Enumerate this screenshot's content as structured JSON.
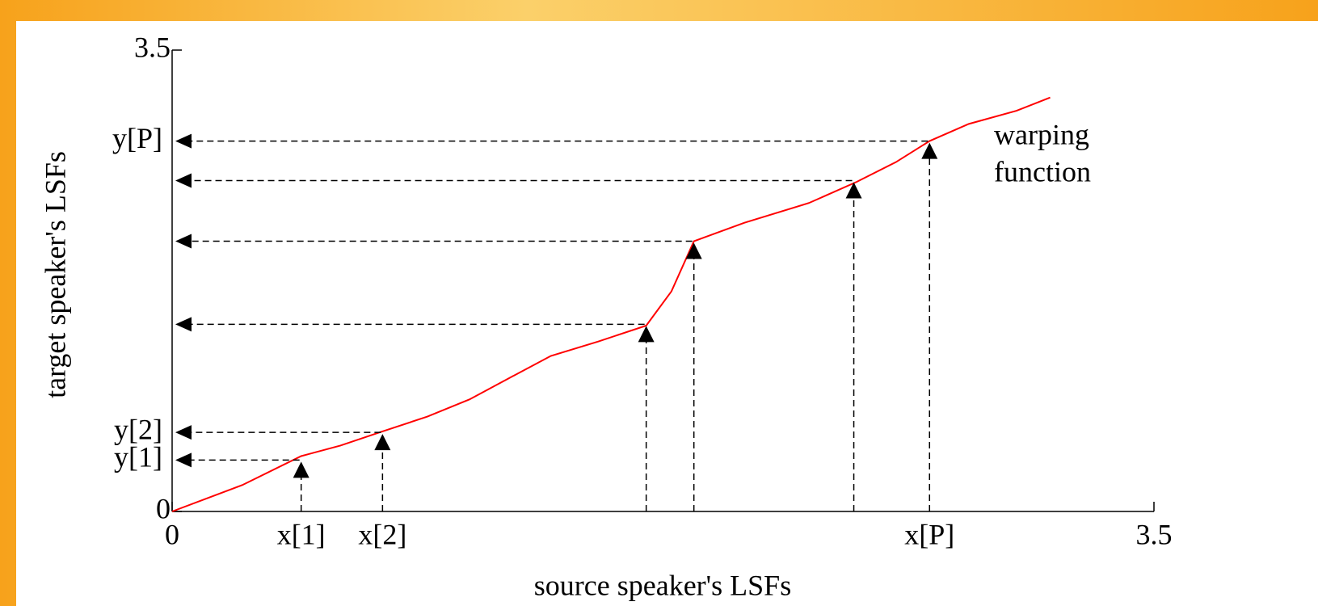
{
  "chart_data": {
    "type": "line",
    "x_label": "source speaker's LSFs",
    "y_label": "target speaker's LSFs",
    "annotation": [
      "warping",
      "function"
    ],
    "color": "#ff0000",
    "x": [
      0,
      0.25,
      0.46,
      0.6,
      0.74,
      0.91,
      1.06,
      1.2,
      1.35,
      1.52,
      1.69,
      1.78,
      1.86,
      2.04,
      2.27,
      2.44,
      2.58,
      2.7,
      2.84,
      3.01,
      3.13
    ],
    "y": [
      0,
      0.2,
      0.42,
      0.5,
      0.6,
      0.72,
      0.85,
      1.01,
      1.18,
      1.29,
      1.41,
      1.67,
      2.05,
      2.19,
      2.34,
      2.5,
      2.65,
      2.81,
      2.94,
      3.04,
      3.14
    ],
    "markers": [
      {
        "x": 0.46,
        "y": 0.39,
        "x_label": "x[1]",
        "y_label": "y[1]"
      },
      {
        "x": 0.75,
        "y": 0.6,
        "x_label": "x[2]",
        "y_label": "y[2]"
      },
      {
        "x": 1.69,
        "y": 1.42
      },
      {
        "x": 1.86,
        "y": 2.05
      },
      {
        "x": 2.43,
        "y": 2.51
      },
      {
        "x": 2.7,
        "y": 2.81,
        "x_label": "x[P]",
        "y_label": "y[P]"
      }
    ],
    "xlim": [
      0,
      3.5
    ],
    "ylim": [
      0,
      3.5
    ],
    "xticks": [
      0,
      3.5
    ],
    "yticks": [
      0,
      3.5
    ]
  }
}
